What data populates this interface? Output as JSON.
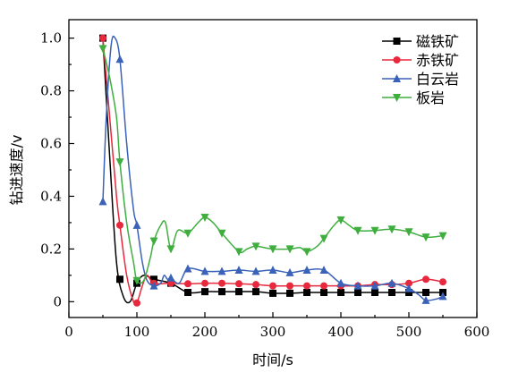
{
  "chart_data": {
    "type": "line",
    "xlabel": "时间/s",
    "ylabel": "钻进速度/v",
    "xlim": [
      0,
      600
    ],
    "ylim": [
      -0.06,
      1.07
    ],
    "x_ticks": [
      "0",
      "100",
      "200",
      "300",
      "400",
      "500",
      "600"
    ],
    "y_ticks": [
      "0",
      "0.2",
      "0.4",
      "0.6",
      "0.8",
      "1.0"
    ],
    "legend_position": "top-right",
    "series": [
      {
        "name": "磁铁矿",
        "color": "#000000",
        "marker": "square",
        "points": [
          [
            50,
            1.0
          ],
          [
            60,
            0.55
          ],
          [
            70,
            0.15
          ],
          [
            80,
            0.02
          ],
          [
            90,
            0.0
          ],
          [
            100,
            0.07
          ],
          [
            110,
            0.1
          ],
          [
            125,
            0.085
          ],
          [
            150,
            0.07
          ],
          [
            175,
            0.035
          ],
          [
            200,
            0.038
          ],
          [
            225,
            0.038
          ],
          [
            250,
            0.038
          ],
          [
            275,
            0.038
          ],
          [
            300,
            0.032
          ],
          [
            325,
            0.032
          ],
          [
            350,
            0.035
          ],
          [
            375,
            0.035
          ],
          [
            400,
            0.035
          ],
          [
            425,
            0.035
          ],
          [
            450,
            0.035
          ],
          [
            475,
            0.035
          ],
          [
            500,
            0.035
          ],
          [
            525,
            0.035
          ],
          [
            550,
            0.035
          ]
        ],
        "marker_x": [
          50,
          75,
          100,
          125,
          150,
          175,
          200,
          225,
          250,
          275,
          300,
          325,
          350,
          375,
          400,
          425,
          450,
          475,
          500,
          525,
          550
        ]
      },
      {
        "name": "赤铁矿",
        "color": "#e8283c",
        "marker": "circle",
        "points": [
          [
            50,
            1.0
          ],
          [
            60,
            0.7
          ],
          [
            70,
            0.4
          ],
          [
            75,
            0.29
          ],
          [
            85,
            0.1
          ],
          [
            95,
            0.0
          ],
          [
            100,
            -0.005
          ],
          [
            108,
            0.06
          ],
          [
            115,
            0.1
          ],
          [
            125,
            0.07
          ],
          [
            150,
            0.07
          ],
          [
            175,
            0.068
          ],
          [
            200,
            0.07
          ],
          [
            225,
            0.07
          ],
          [
            250,
            0.068
          ],
          [
            275,
            0.065
          ],
          [
            300,
            0.06
          ],
          [
            325,
            0.06
          ],
          [
            350,
            0.06
          ],
          [
            375,
            0.06
          ],
          [
            400,
            0.06
          ],
          [
            425,
            0.06
          ],
          [
            450,
            0.065
          ],
          [
            475,
            0.065
          ],
          [
            500,
            0.07
          ],
          [
            525,
            0.085
          ],
          [
            550,
            0.075
          ]
        ],
        "marker_x": [
          50,
          75,
          100,
          125,
          150,
          175,
          200,
          225,
          250,
          275,
          300,
          325,
          350,
          375,
          400,
          425,
          450,
          475,
          500,
          525,
          550
        ]
      },
      {
        "name": "白云岩",
        "color": "#3a62b8",
        "marker": "triangle-up",
        "points": [
          [
            50,
            0.38
          ],
          [
            55,
            0.7
          ],
          [
            62,
            0.97
          ],
          [
            68,
            1.0
          ],
          [
            75,
            0.92
          ],
          [
            85,
            0.6
          ],
          [
            95,
            0.35
          ],
          [
            100,
            0.29
          ],
          [
            108,
            0.15
          ],
          [
            115,
            0.08
          ],
          [
            125,
            0.06
          ],
          [
            135,
            0.07
          ],
          [
            140,
            0.1
          ],
          [
            145,
            0.085
          ],
          [
            150,
            0.09
          ],
          [
            162,
            0.07
          ],
          [
            175,
            0.125
          ],
          [
            200,
            0.115
          ],
          [
            225,
            0.115
          ],
          [
            250,
            0.12
          ],
          [
            275,
            0.115
          ],
          [
            300,
            0.12
          ],
          [
            325,
            0.11
          ],
          [
            350,
            0.12
          ],
          [
            375,
            0.12
          ],
          [
            400,
            0.07
          ],
          [
            425,
            0.06
          ],
          [
            450,
            0.06
          ],
          [
            475,
            0.07
          ],
          [
            500,
            0.05
          ],
          [
            515,
            0.025
          ],
          [
            525,
            0.005
          ],
          [
            540,
            0.01
          ],
          [
            550,
            0.02
          ]
        ],
        "marker_x": [
          50,
          75,
          100,
          125,
          150,
          175,
          200,
          225,
          250,
          275,
          300,
          325,
          350,
          375,
          400,
          425,
          450,
          475,
          500,
          525,
          550
        ]
      },
      {
        "name": "板岩",
        "color": "#3fae3f",
        "marker": "triangle-down",
        "points": [
          [
            50,
            0.96
          ],
          [
            60,
            0.85
          ],
          [
            70,
            0.7
          ],
          [
            75,
            0.53
          ],
          [
            85,
            0.3
          ],
          [
            95,
            0.15
          ],
          [
            100,
            0.08
          ],
          [
            110,
            0.08
          ],
          [
            120,
            0.17
          ],
          [
            125,
            0.23
          ],
          [
            135,
            0.29
          ],
          [
            142,
            0.3
          ],
          [
            150,
            0.2
          ],
          [
            160,
            0.27
          ],
          [
            175,
            0.26
          ],
          [
            190,
            0.3
          ],
          [
            200,
            0.32
          ],
          [
            212,
            0.3
          ],
          [
            225,
            0.26
          ],
          [
            250,
            0.19
          ],
          [
            262,
            0.2
          ],
          [
            275,
            0.21
          ],
          [
            300,
            0.2
          ],
          [
            325,
            0.2
          ],
          [
            340,
            0.205
          ],
          [
            350,
            0.19
          ],
          [
            365,
            0.21
          ],
          [
            375,
            0.24
          ],
          [
            390,
            0.29
          ],
          [
            400,
            0.31
          ],
          [
            412,
            0.29
          ],
          [
            425,
            0.27
          ],
          [
            450,
            0.27
          ],
          [
            475,
            0.275
          ],
          [
            500,
            0.265
          ],
          [
            525,
            0.245
          ],
          [
            550,
            0.25
          ]
        ],
        "marker_x": [
          50,
          75,
          100,
          125,
          150,
          175,
          200,
          225,
          250,
          275,
          300,
          325,
          350,
          375,
          400,
          425,
          450,
          475,
          500,
          525,
          550
        ]
      }
    ]
  }
}
